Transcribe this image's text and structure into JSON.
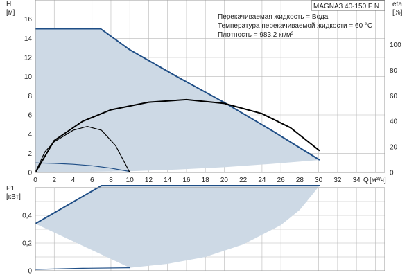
{
  "title": "MAGNA3 40-150 F N",
  "info_lines": [
    "Перекачиваемая жидкость = Вода",
    "Температура перекачиваемой жидкости = 60 °C",
    "Плотность = 983.2 кг/м³"
  ],
  "colors": {
    "fill": "#cdd9e5",
    "curve": "#1f4e86",
    "efficiency": "#000000",
    "grid": "#b8b8b8"
  },
  "chart_data": [
    {
      "type": "area",
      "name": "head",
      "ylabel": "H",
      "yunit": "[м]",
      "y2label": "eta",
      "y2unit": "[%]",
      "xlabel": "Q",
      "xunit": "[м³/ч]",
      "xlim": [
        0,
        37
      ],
      "ylim": [
        0,
        18
      ],
      "y2lim": [
        0,
        135
      ],
      "grid": true,
      "x_ticks": [
        "0",
        "2",
        "4",
        "6",
        "8",
        "10",
        "12",
        "14",
        "16",
        "18",
        "20",
        "22",
        "24",
        "26",
        "28",
        "30",
        "32",
        "34"
      ],
      "y_ticks": [
        "0",
        "2",
        "4",
        "6",
        "8",
        "10",
        "12",
        "14",
        "16"
      ],
      "y2_ticks": [
        "0",
        "20",
        "40",
        "60",
        "80",
        "100"
      ],
      "max_curve": {
        "x": [
          0,
          6.9,
          10,
          15,
          20,
          25,
          30.1
        ],
        "y": [
          15,
          15,
          12.8,
          10,
          7.3,
          4.4,
          1.3
        ]
      },
      "min_curve": {
        "x": [
          0,
          2,
          4,
          6,
          8,
          10
        ],
        "y": [
          1.0,
          0.95,
          0.85,
          0.7,
          0.45,
          0.1
        ]
      },
      "envelope_bottom": {
        "x": [
          0,
          10,
          15,
          20,
          25,
          30.1
        ],
        "y": [
          0,
          0.12,
          0.3,
          0.55,
          0.9,
          1.3
        ]
      },
      "efficiency_max": {
        "x": [
          0,
          2,
          5,
          8,
          12,
          16,
          20,
          24,
          27,
          30.1
        ],
        "y": [
          0,
          25,
          40,
          49,
          55,
          57,
          54,
          46,
          35,
          17
        ]
      },
      "efficiency_min": {
        "x": [
          0,
          1,
          2,
          4,
          5.5,
          7,
          8.5,
          10
        ],
        "y": [
          0,
          16,
          24,
          33,
          36,
          33,
          21,
          0
        ]
      }
    },
    {
      "type": "area",
      "name": "power",
      "ylabel": "P1",
      "yunit": "[кВт]",
      "xlim": [
        0,
        37
      ],
      "ylim": [
        0,
        0.6
      ],
      "grid": true,
      "y_ticks": [
        "0",
        "0,2",
        "0,4"
      ],
      "max_curve": {
        "x": [
          0,
          7,
          30.1
        ],
        "y": [
          0.34,
          0.615,
          0.615
        ]
      },
      "min_curve": {
        "x": [
          0,
          5,
          10
        ],
        "y": [
          0.01,
          0.018,
          0.022
        ]
      },
      "envelope_bottom": {
        "x": [
          10,
          14,
          18,
          22,
          26,
          28,
          30.1
        ],
        "y": [
          0.022,
          0.05,
          0.1,
          0.19,
          0.33,
          0.44,
          0.615
        ]
      }
    }
  ]
}
